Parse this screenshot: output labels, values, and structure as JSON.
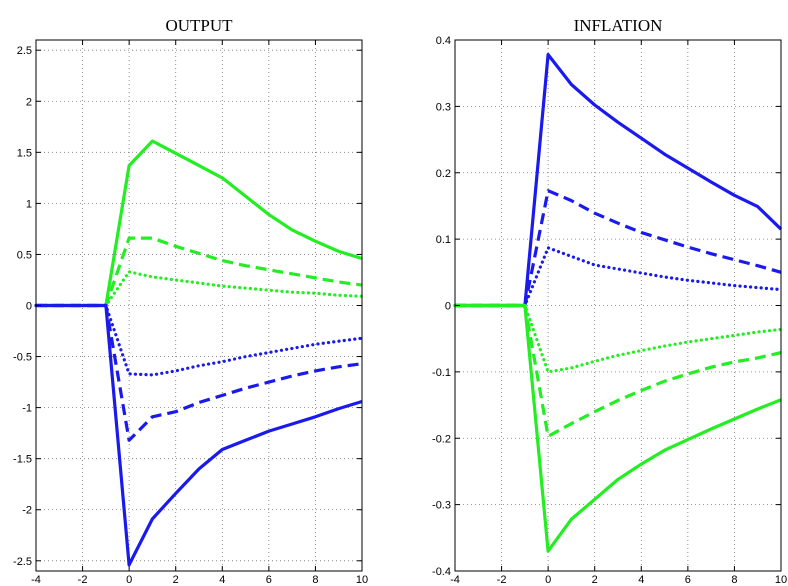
{
  "colors": {
    "green": "#22ee22",
    "blue": "#1a1aee",
    "grid": "#777777",
    "axis": "#000000"
  },
  "chart_data": [
    {
      "type": "line",
      "title": "OUTPUT",
      "xlabel": "",
      "ylabel": "",
      "xlim": [
        -4,
        10
      ],
      "ylim": [
        -2.6,
        2.6
      ],
      "xticks": [
        -4,
        -2,
        0,
        2,
        4,
        6,
        8,
        10
      ],
      "yticks": [
        -2.5,
        -2,
        -1.5,
        -1,
        -0.5,
        0,
        0.5,
        1,
        1.5,
        2,
        2.5
      ],
      "grid": true,
      "x": [
        -4,
        -3,
        -2,
        -1,
        0,
        1,
        2,
        3,
        4,
        5,
        6,
        7,
        8,
        9,
        10
      ],
      "series": [
        {
          "color": "green",
          "dash": "solid",
          "values": [
            0,
            0,
            0,
            0,
            1.37,
            1.61,
            1.49,
            1.37,
            1.25,
            1.07,
            0.89,
            0.74,
            0.63,
            0.53,
            0.46
          ]
        },
        {
          "color": "green",
          "dash": "dashed",
          "values": [
            0,
            0,
            0,
            0,
            0.66,
            0.66,
            0.58,
            0.51,
            0.44,
            0.39,
            0.35,
            0.31,
            0.27,
            0.23,
            0.2
          ]
        },
        {
          "color": "green",
          "dash": "dotted",
          "values": [
            0,
            0,
            0,
            0,
            0.33,
            0.28,
            0.25,
            0.22,
            0.19,
            0.17,
            0.15,
            0.13,
            0.12,
            0.1,
            0.09
          ]
        },
        {
          "color": "blue",
          "dash": "dotted",
          "values": [
            0,
            0,
            0,
            0,
            -0.67,
            -0.68,
            -0.64,
            -0.59,
            -0.55,
            -0.5,
            -0.46,
            -0.42,
            -0.38,
            -0.35,
            -0.32
          ]
        },
        {
          "color": "blue",
          "dash": "dashed",
          "values": [
            0,
            0,
            0,
            0,
            -1.32,
            -1.09,
            -1.04,
            -0.95,
            -0.88,
            -0.81,
            -0.75,
            -0.69,
            -0.64,
            -0.6,
            -0.57
          ]
        },
        {
          "color": "blue",
          "dash": "solid",
          "values": [
            0,
            0,
            0,
            0,
            -2.54,
            -2.09,
            -1.84,
            -1.6,
            -1.41,
            -1.32,
            -1.23,
            -1.16,
            -1.09,
            -1.01,
            -0.94
          ]
        }
      ]
    },
    {
      "type": "line",
      "title": "INFLATION",
      "xlabel": "",
      "ylabel": "",
      "xlim": [
        -4,
        10
      ],
      "ylim": [
        -0.4,
        0.4
      ],
      "xticks": [
        -4,
        -2,
        0,
        2,
        4,
        6,
        8,
        10
      ],
      "yticks": [
        -0.4,
        -0.3,
        -0.2,
        -0.1,
        0,
        0.1,
        0.2,
        0.3,
        0.4
      ],
      "grid": true,
      "x": [
        -4,
        -3,
        -2,
        -1,
        0,
        1,
        2,
        3,
        4,
        5,
        6,
        7,
        8,
        9,
        10
      ],
      "series": [
        {
          "color": "blue",
          "dash": "solid",
          "values": [
            0,
            0,
            0,
            0,
            0.378,
            0.333,
            0.302,
            0.276,
            0.252,
            0.228,
            0.207,
            0.186,
            0.166,
            0.149,
            0.115
          ]
        },
        {
          "color": "blue",
          "dash": "dashed",
          "values": [
            0,
            0,
            0,
            0,
            0.173,
            0.158,
            0.139,
            0.124,
            0.11,
            0.099,
            0.088,
            0.078,
            0.069,
            0.06,
            0.05
          ]
        },
        {
          "color": "blue",
          "dash": "dotted",
          "values": [
            0,
            0,
            0,
            0,
            0.087,
            0.074,
            0.061,
            0.055,
            0.049,
            0.043,
            0.038,
            0.034,
            0.03,
            0.027,
            0.024
          ]
        },
        {
          "color": "green",
          "dash": "dotted",
          "values": [
            0,
            0,
            0,
            0,
            -0.1,
            -0.094,
            -0.084,
            -0.075,
            -0.068,
            -0.061,
            -0.055,
            -0.05,
            -0.045,
            -0.04,
            -0.036
          ]
        },
        {
          "color": "green",
          "dash": "dashed",
          "values": [
            0,
            0,
            0,
            0,
            -0.197,
            -0.178,
            -0.16,
            -0.143,
            -0.128,
            -0.114,
            -0.103,
            -0.093,
            -0.085,
            -0.079,
            -0.071
          ]
        },
        {
          "color": "green",
          "dash": "solid",
          "values": [
            0,
            0,
            0,
            0,
            -0.37,
            -0.322,
            -0.292,
            -0.262,
            -0.239,
            -0.218,
            -0.202,
            -0.186,
            -0.171,
            -0.156,
            -0.142
          ]
        }
      ]
    }
  ]
}
